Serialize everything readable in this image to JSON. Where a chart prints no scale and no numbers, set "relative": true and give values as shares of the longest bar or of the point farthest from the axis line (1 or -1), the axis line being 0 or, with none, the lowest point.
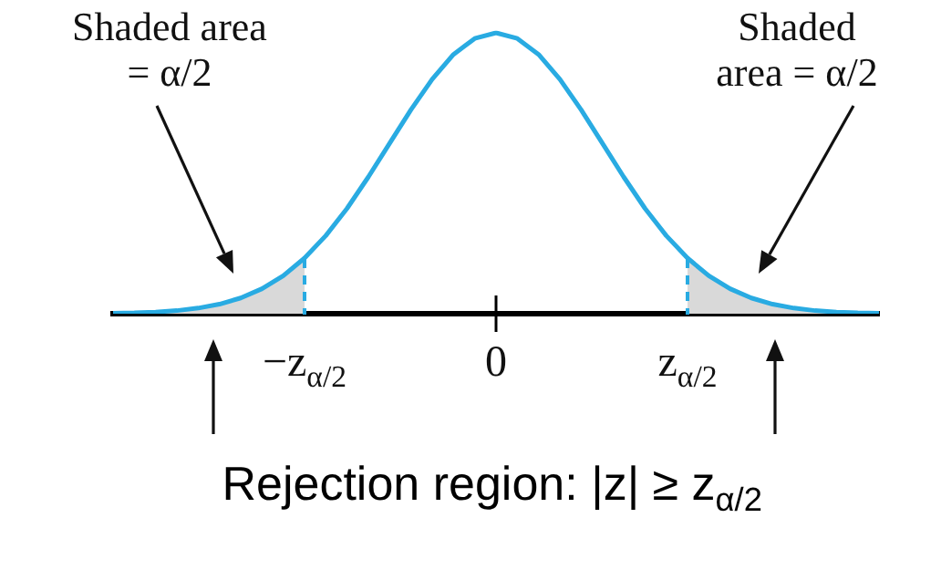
{
  "chart_data": {
    "type": "line",
    "relative": true,
    "categories": [
      null,
      null,
      null,
      null,
      null,
      null,
      null,
      null,
      null,
      "−z$_{α/2}$",
      null,
      null,
      null,
      null,
      null,
      null,
      null,
      null,
      "0",
      null,
      null,
      null,
      null,
      null,
      null,
      null,
      null,
      "z$_{α/2}$",
      null,
      null,
      null,
      null,
      null,
      null,
      null,
      null,
      null
    ],
    "series": [
      {
        "type": "line",
        "color": "#29abe2",
        "values": [
          0.002,
          0.003,
          0.006,
          0.011,
          0.02,
          0.034,
          0.056,
          0.089,
          0.135,
          0.198,
          0.278,
          0.375,
          0.487,
          0.607,
          0.726,
          0.835,
          0.923,
          0.98,
          1,
          0.98,
          0.923,
          0.835,
          0.726,
          0.607,
          0.487,
          0.375,
          0.278,
          0.198,
          0.135,
          0.089,
          0.056,
          0.034,
          0.02,
          0.011,
          0.006,
          0.003,
          0.002
        ]
      },
      {
        "type": "area",
        "color": "#d9d9d9",
        "values": [
          0.002,
          0.003,
          0.006,
          0.011,
          0.02,
          0.034,
          0.056,
          0.089,
          0.135,
          0.198,
          null,
          null,
          null,
          null,
          null,
          null,
          null,
          null,
          null,
          null,
          null,
          null,
          null,
          null,
          null,
          null,
          null,
          0.198,
          0.135,
          0.089,
          0.056,
          0.034,
          0.02,
          0.011,
          0.006,
          0.003,
          0.002
        ]
      }
    ],
    "annotations": [
      "Shaded area\n= α/2",
      "Shaded\narea = α/2",
      "Rejection region: |z| ≥ z$_{α/2}$"
    ]
  }
}
